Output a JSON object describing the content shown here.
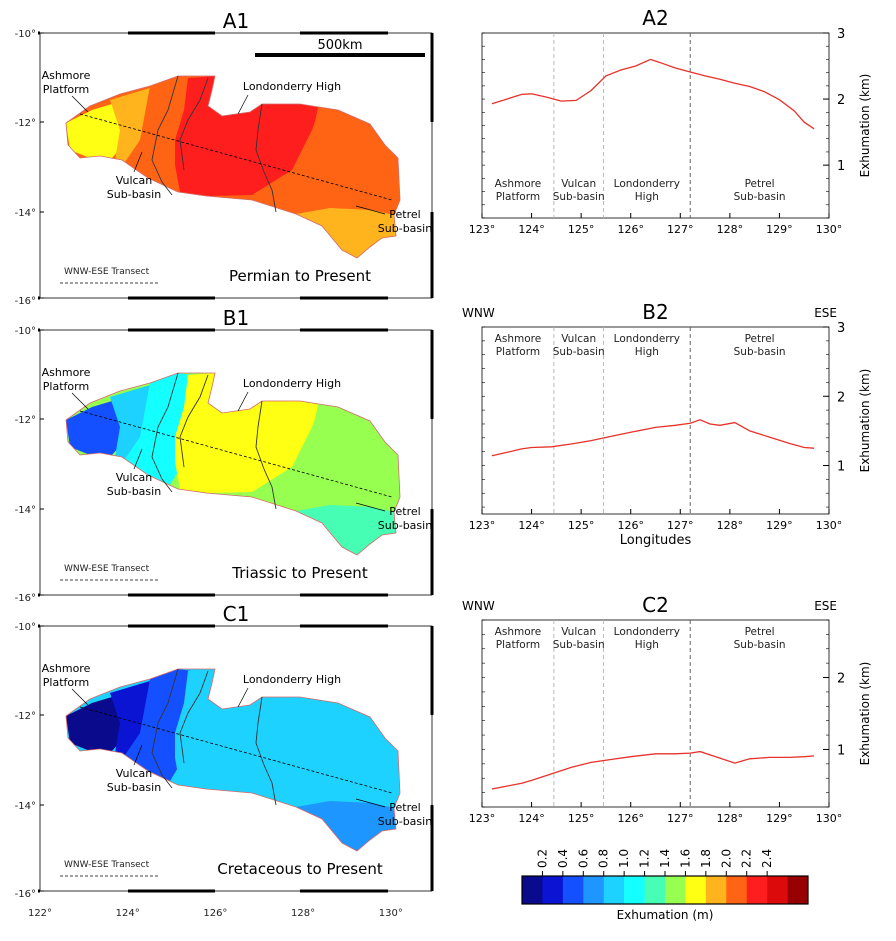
{
  "colors": {
    "line": "#e8312a",
    "dash_light": "#b4b4b4",
    "dash_dark": "#555555",
    "basin_border": "#333333",
    "scale": [
      "#0a0a8c",
      "#0a14d2",
      "#1450ff",
      "#1e96ff",
      "#1ed2ff",
      "#14ffff",
      "#46ffb4",
      "#96ff50",
      "#ffff14",
      "#ffb41e",
      "#ff6414",
      "#ff1e1e",
      "#dc0a0a",
      "#960000"
    ]
  },
  "maps": [
    {
      "title": "A1",
      "period": "Permian to Present",
      "scale_label": "500km",
      "show_scale": true,
      "transect_label": "WNW-ESE Transect",
      "labels": {
        "ashmore": [
          "Ashmore",
          "Platform"
        ],
        "londonderry": "Londonderry High",
        "vulcan": [
          "Vulcan",
          "Sub-basin"
        ],
        "petrel": [
          "Petrel",
          "Sub-basin"
        ]
      },
      "zone_levels": [
        8,
        9,
        10,
        11,
        10,
        9
      ]
    },
    {
      "title": "B1",
      "period": "Triassic to Present",
      "show_scale": false,
      "transect_label": "WNW-ESE Transect",
      "labels": {
        "ashmore": [
          "Ashmore",
          "Platform"
        ],
        "londonderry": "Londonderry High",
        "vulcan": [
          "Vulcan",
          "Sub-basin"
        ],
        "petrel": [
          "Petrel",
          "Sub-basin"
        ]
      },
      "zone_levels": [
        2,
        4,
        5,
        8,
        7,
        6
      ]
    },
    {
      "title": "C1",
      "period": "Cretaceous to Present",
      "show_scale": false,
      "transect_label": "WNW-ESE Transect",
      "labels": {
        "ashmore": [
          "Ashmore",
          "Platform"
        ],
        "londonderry": "Londonderry High",
        "vulcan": [
          "Vulcan",
          "Sub-basin"
        ],
        "petrel": [
          "Petrel",
          "Sub-basin"
        ]
      },
      "zone_levels": [
        0,
        1,
        2,
        4,
        4,
        3
      ]
    }
  ],
  "map_axes": {
    "lat_ticks": [
      "-10°",
      "-12°",
      "-14°",
      "-16°"
    ],
    "lon_ticks": [
      "122°",
      "124°",
      "126°",
      "128°",
      "130°"
    ]
  },
  "chart_data": [
    {
      "type": "line",
      "title": "A2",
      "left_label": "",
      "right_label": "",
      "xlabel": "",
      "ylabel": "Exhumation (km)",
      "xlim": [
        123,
        130
      ],
      "ylim": [
        0.2,
        3
      ],
      "xticks": [
        "123°",
        "124°",
        "125°",
        "126°",
        "127°",
        "128°",
        "129°",
        "130°"
      ],
      "yticks": [
        1,
        2,
        3
      ],
      "boundaries": [
        124.45,
        125.45,
        127.2
      ],
      "regions": [
        [
          "Ashmore",
          "Platform"
        ],
        [
          "Vulcan",
          "Sub-basin"
        ],
        [
          "Londonderry",
          "High"
        ],
        [
          "Petrel",
          "Sub-basin"
        ]
      ],
      "regions_position": "bottom",
      "x": [
        123.2,
        123.5,
        123.8,
        124.0,
        124.3,
        124.6,
        124.9,
        125.2,
        125.5,
        125.8,
        126.1,
        126.4,
        126.6,
        126.9,
        127.2,
        127.5,
        127.8,
        128.1,
        128.4,
        128.7,
        129.0,
        129.3,
        129.5,
        129.7
      ],
      "y": [
        1.93,
        2.0,
        2.07,
        2.08,
        2.03,
        1.97,
        1.98,
        2.13,
        2.35,
        2.44,
        2.5,
        2.6,
        2.55,
        2.47,
        2.41,
        2.35,
        2.3,
        2.24,
        2.19,
        2.11,
        1.99,
        1.82,
        1.65,
        1.55
      ]
    },
    {
      "type": "line",
      "title": "B2",
      "left_label": "WNW",
      "right_label": "ESE",
      "xlabel": "Longitudes",
      "ylabel": "Exhumation (km)",
      "xlim": [
        123,
        130
      ],
      "ylim": [
        0.3,
        3
      ],
      "xticks": [
        "123°",
        "124°",
        "125°",
        "126°",
        "127°",
        "128°",
        "129°",
        "130°"
      ],
      "yticks": [
        1,
        2,
        3
      ],
      "boundaries": [
        124.45,
        125.45,
        127.2
      ],
      "regions": [
        [
          "Ashmore",
          "Platform"
        ],
        [
          "Vulcan",
          "Sub-basin"
        ],
        [
          "Londonderry",
          "High"
        ],
        [
          "Petrel",
          "Sub-basin"
        ]
      ],
      "regions_position": "top",
      "x": [
        123.2,
        123.5,
        123.8,
        124.0,
        124.4,
        124.8,
        125.2,
        125.6,
        126.0,
        126.5,
        126.9,
        127.2,
        127.4,
        127.6,
        127.8,
        128.1,
        128.4,
        128.8,
        129.2,
        129.5,
        129.7
      ],
      "y": [
        1.14,
        1.19,
        1.24,
        1.26,
        1.27,
        1.31,
        1.36,
        1.42,
        1.48,
        1.55,
        1.58,
        1.61,
        1.66,
        1.6,
        1.58,
        1.62,
        1.5,
        1.41,
        1.32,
        1.26,
        1.25
      ]
    },
    {
      "type": "line",
      "title": "C2",
      "left_label": "WNW",
      "right_label": "ESE",
      "xlabel": "",
      "ylabel": "Exhumation (km)",
      "xlim": [
        123,
        130
      ],
      "ylim": [
        0.2,
        2.8
      ],
      "xticks": [
        "123°",
        "124°",
        "125°",
        "126°",
        "127°",
        "128°",
        "129°",
        "130°"
      ],
      "yticks": [
        1,
        2
      ],
      "boundaries": [
        124.45,
        125.45,
        127.2
      ],
      "regions": [
        [
          "Ashmore",
          "Platform"
        ],
        [
          "Vulcan",
          "Sub-basin"
        ],
        [
          "Londonderry",
          "High"
        ],
        [
          "Petrel",
          "Sub-basin"
        ]
      ],
      "regions_position": "top",
      "x": [
        123.2,
        123.5,
        123.8,
        124.0,
        124.4,
        124.8,
        125.2,
        125.6,
        126.0,
        126.5,
        126.9,
        127.2,
        127.4,
        127.8,
        128.1,
        128.4,
        128.8,
        129.2,
        129.5,
        129.7
      ],
      "y": [
        0.45,
        0.49,
        0.53,
        0.57,
        0.66,
        0.75,
        0.82,
        0.86,
        0.9,
        0.94,
        0.94,
        0.95,
        0.97,
        0.88,
        0.81,
        0.87,
        0.89,
        0.89,
        0.9,
        0.91
      ]
    },
    {
      "type": "heatmap",
      "title": "",
      "xlabel": "Exhumation (m)",
      "ticks": [
        "0.2",
        "0.4",
        "0.6",
        "0.8",
        "1.0",
        "1.2",
        "1.4",
        "1.6",
        "1.8",
        "2.0",
        "2.2",
        "2.4"
      ]
    }
  ]
}
